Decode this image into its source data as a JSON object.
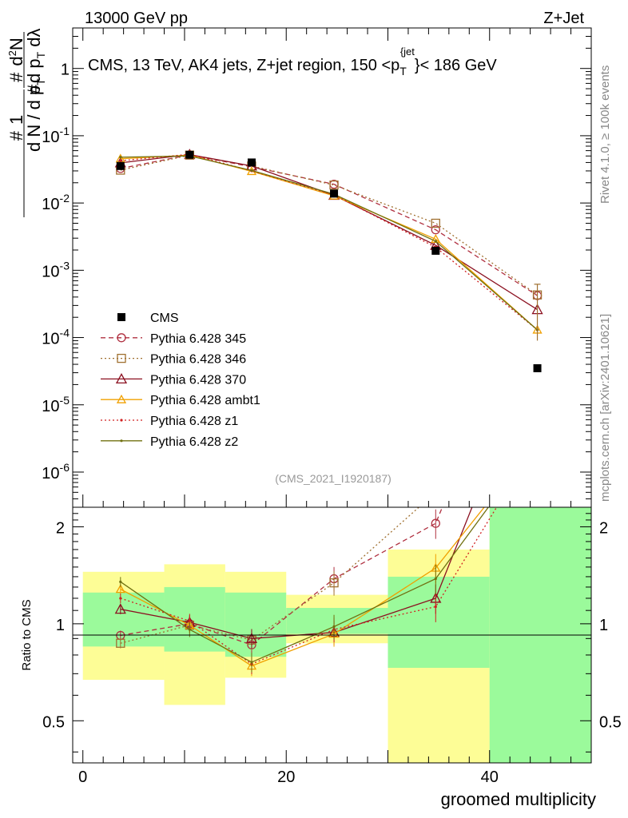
{
  "header": {
    "left": "13000 GeV pp",
    "right": "Z+Jet"
  },
  "side_text": {
    "rivet": "Rivet 4.1.0, ≥ 100k events",
    "mcplots": "mcplots.cern.ch [arXiv:2401.10621]"
  },
  "chart_data": {
    "type": "line",
    "title": "CMS, 13 TeV, AK4 jets, Z+jet region, 150 <p_T^{jet}< 186 GeV",
    "title_parts": {
      "prefix": "CMS, 13 TeV, AK4 jets, Z+jet region, 150 <p",
      "sub": "T",
      "sup": "{jet",
      "suffix": "}< 186 GeV"
    },
    "analysis_id": "(CMS_2021_I1920187)",
    "xlabel": "groomed multiplicity",
    "ylabel_top": "1/N dN/dp_T d²N/dp_T dλ",
    "ylabel_ratio": "Ratio to CMS",
    "xlim": [
      -1,
      50
    ],
    "ylim_top": [
      3e-07,
      4
    ],
    "yscale_top": "log",
    "ylim_ratio": [
      0.37,
      2.3
    ],
    "yscale_ratio": "log",
    "x_ticks": [
      0,
      20,
      40
    ],
    "y_ticks_top": [
      {
        "v": 1,
        "label": "1"
      },
      {
        "v": 0.1,
        "label": "10^{-1}"
      },
      {
        "v": 0.01,
        "label": "10^{-2}"
      },
      {
        "v": 0.001,
        "label": "10^{-3}"
      },
      {
        "v": 0.0001,
        "label": "10^{-4}"
      },
      {
        "v": 1e-05,
        "label": "10^{-5}"
      },
      {
        "v": 1e-06,
        "label": "10^{-6}"
      }
    ],
    "y_ticks_ratio": [
      {
        "v": 0.5,
        "label": "0.5"
      },
      {
        "v": 1,
        "label": "1"
      },
      {
        "v": 2,
        "label": "2"
      }
    ],
    "bins": [
      {
        "lo": 0,
        "hi": 8,
        "x": 3.7,
        "cms": 0.0355,
        "band1": [
          0.85,
          1.25
        ],
        "band2": [
          0.67,
          1.45
        ]
      },
      {
        "lo": 8,
        "hi": 14,
        "x": 10.5,
        "cms": 0.052,
        "band1": [
          0.82,
          1.3
        ],
        "band2": [
          0.56,
          1.53
        ]
      },
      {
        "lo": 14,
        "hi": 20,
        "x": 16.6,
        "cms": 0.04,
        "band1": [
          0.79,
          1.25
        ],
        "band2": [
          0.68,
          1.45
        ]
      },
      {
        "lo": 20,
        "hi": 30,
        "x": 24.7,
        "cms": 0.0138,
        "band1": [
          0.93,
          1.12
        ],
        "band2": [
          0.87,
          1.23
        ]
      },
      {
        "lo": 30,
        "hi": 40,
        "x": 34.7,
        "cms": 0.00195,
        "band1": [
          0.73,
          1.4
        ],
        "band2": [
          0.3,
          1.7
        ]
      },
      {
        "lo": 40,
        "hi": 50,
        "x": 44.7,
        "cms": 3.5e-05,
        "band1": [
          0.3,
          3.0
        ],
        "band2": [
          0.3,
          3.0
        ]
      }
    ],
    "band_colors": {
      "inner": "#9bfa9b",
      "outer": "#fdfd96"
    },
    "series": [
      {
        "name": "CMS",
        "marker": "square",
        "color": "#000000",
        "dash": "",
        "values": [
          0.0355,
          0.052,
          0.04,
          0.0138,
          0.00195,
          3.5e-05
        ]
      },
      {
        "name": "Pythia 6.428 345",
        "marker": "circle",
        "color": "#b03040",
        "dash": "6,4",
        "values": [
          0.0326,
          0.052,
          0.0345,
          0.019,
          0.004,
          0.00042
        ],
        "ratio": [
          0.92,
          1.0,
          0.86,
          1.38,
          2.05,
          12.0
        ]
      },
      {
        "name": "Pythia 6.428 346",
        "marker": "square-open",
        "color": "#a07030",
        "dash": "2,3",
        "values": [
          0.0308,
          0.0515,
          0.0355,
          0.0185,
          0.005,
          0.00043
        ],
        "ratio": [
          0.87,
          0.99,
          0.89,
          1.34,
          2.56,
          12.3
        ]
      },
      {
        "name": "Pythia 6.428 370",
        "marker": "triangle",
        "color": "#8b1020",
        "dash": "",
        "values": [
          0.0395,
          0.0525,
          0.0355,
          0.013,
          0.00235,
          0.00026
        ],
        "ratio": [
          1.11,
          1.01,
          0.9,
          0.94,
          1.2,
          7.4
        ]
      },
      {
        "name": "Pythia 6.428 ambt1",
        "marker": "triangle-orange",
        "color": "#f0a000",
        "dash": "",
        "values": [
          0.0455,
          0.0513,
          0.0296,
          0.0128,
          0.0029,
          0.00013
        ],
        "ratio": [
          1.28,
          0.99,
          0.74,
          0.93,
          1.49,
          3.7
        ]
      },
      {
        "name": "Pythia 6.428 z1",
        "marker": "dot",
        "color": "#d02020",
        "dash": "2,3",
        "values": [
          0.0425,
          0.053,
          0.03,
          0.0132,
          0.0022,
          0.00013
        ],
        "ratio": [
          1.2,
          1.02,
          0.75,
          0.96,
          1.13,
          3.7
        ]
      },
      {
        "name": "Pythia 6.428 z2",
        "marker": "dot",
        "color": "#707010",
        "dash": "",
        "values": [
          0.048,
          0.05,
          0.0305,
          0.0135,
          0.0027,
          0.00013
        ],
        "ratio": [
          1.35,
          0.96,
          0.76,
          0.98,
          1.38,
          3.7
        ]
      }
    ]
  }
}
